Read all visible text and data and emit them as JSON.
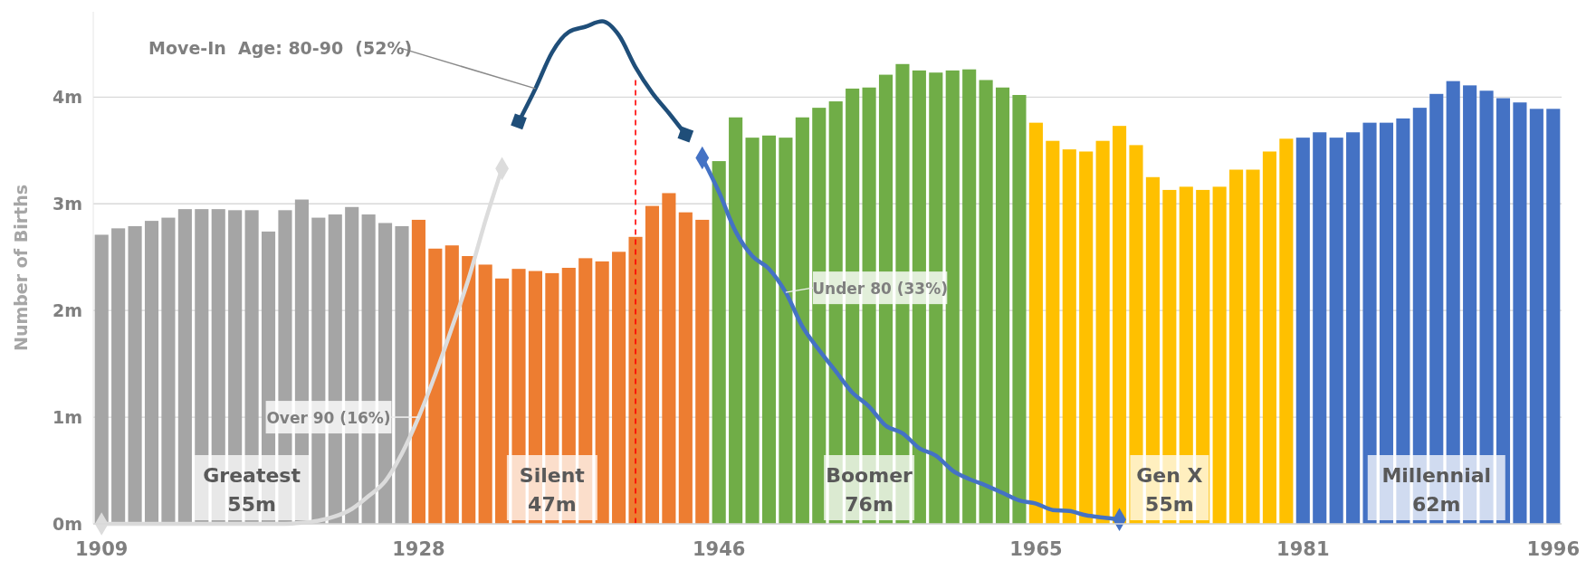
{
  "chart_data": {
    "type": "bar",
    "ylabel": "Number of Births",
    "x": [
      1909,
      1910,
      1911,
      1912,
      1913,
      1914,
      1915,
      1916,
      1917,
      1918,
      1919,
      1920,
      1921,
      1922,
      1923,
      1924,
      1925,
      1926,
      1927,
      1928,
      1929,
      1930,
      1931,
      1932,
      1933,
      1934,
      1935,
      1936,
      1937,
      1938,
      1939,
      1940,
      1941,
      1942,
      1943,
      1944,
      1945,
      1946,
      1947,
      1948,
      1949,
      1950,
      1951,
      1952,
      1953,
      1954,
      1955,
      1956,
      1957,
      1958,
      1959,
      1960,
      1961,
      1962,
      1963,
      1964,
      1965,
      1966,
      1967,
      1968,
      1969,
      1970,
      1971,
      1972,
      1973,
      1974,
      1975,
      1976,
      1977,
      1978,
      1979,
      1980,
      1981,
      1982,
      1983,
      1984,
      1985,
      1986,
      1987,
      1988,
      1989,
      1990,
      1991,
      1992,
      1993,
      1994,
      1995,
      1996
    ],
    "xlim": [
      1908.5,
      1996.5
    ],
    "xticks": [
      1909,
      1928,
      1946,
      1965,
      1981,
      1996
    ],
    "ylim": [
      0,
      4.8
    ],
    "yticks": [
      {
        "value": 0,
        "label": "0m"
      },
      {
        "value": 1,
        "label": "1m"
      },
      {
        "value": 2,
        "label": "2m"
      },
      {
        "value": 3,
        "label": "3m"
      },
      {
        "value": 4,
        "label": "4m"
      }
    ],
    "grid": "y",
    "series": [
      {
        "values": [
          2.71,
          2.77,
          2.79,
          2.84,
          2.87,
          2.95,
          2.95,
          2.95,
          2.94,
          2.94,
          2.74,
          2.94,
          3.04,
          2.87,
          2.9,
          2.97,
          2.9,
          2.82,
          2.79,
          2.85,
          2.58,
          2.61,
          2.51,
          2.43,
          2.3,
          2.39,
          2.37,
          2.35,
          2.4,
          2.49,
          2.46,
          2.55,
          2.69,
          2.98,
          3.1,
          2.92,
          2.85,
          3.4,
          3.81,
          3.62,
          3.64,
          3.62,
          3.81,
          3.9,
          3.96,
          4.08,
          4.09,
          4.21,
          4.31,
          4.25,
          4.23,
          4.25,
          4.26,
          4.16,
          4.09,
          4.02,
          3.76,
          3.59,
          3.51,
          3.49,
          3.59,
          3.73,
          3.55,
          3.25,
          3.13,
          3.16,
          3.13,
          3.16,
          3.32,
          3.32,
          3.49,
          3.61,
          3.62,
          3.67,
          3.62,
          3.67,
          3.76,
          3.76,
          3.8,
          3.9,
          4.03,
          4.15,
          4.11,
          4.06,
          3.99,
          3.95,
          3.89,
          3.89
        ],
        "colors": [
          "#a5a5a5",
          "#a5a5a5",
          "#a5a5a5",
          "#a5a5a5",
          "#a5a5a5",
          "#a5a5a5",
          "#a5a5a5",
          "#a5a5a5",
          "#a5a5a5",
          "#a5a5a5",
          "#a5a5a5",
          "#a5a5a5",
          "#a5a5a5",
          "#a5a5a5",
          "#a5a5a5",
          "#a5a5a5",
          "#a5a5a5",
          "#a5a5a5",
          "#a5a5a5",
          "#ed7d31",
          "#ed7d31",
          "#ed7d31",
          "#ed7d31",
          "#ed7d31",
          "#ed7d31",
          "#ed7d31",
          "#ed7d31",
          "#ed7d31",
          "#ed7d31",
          "#ed7d31",
          "#ed7d31",
          "#ed7d31",
          "#ed7d31",
          "#ed7d31",
          "#ed7d31",
          "#ed7d31",
          "#ed7d31",
          "#70ad47",
          "#70ad47",
          "#70ad47",
          "#70ad47",
          "#70ad47",
          "#70ad47",
          "#70ad47",
          "#70ad47",
          "#70ad47",
          "#70ad47",
          "#70ad47",
          "#70ad47",
          "#70ad47",
          "#70ad47",
          "#70ad47",
          "#70ad47",
          "#70ad47",
          "#70ad47",
          "#70ad47",
          "#ffc000",
          "#ffc000",
          "#ffc000",
          "#ffc000",
          "#ffc000",
          "#ffc000",
          "#ffc000",
          "#ffc000",
          "#ffc000",
          "#ffc000",
          "#ffc000",
          "#ffc000",
          "#ffc000",
          "#ffc000",
          "#ffc000",
          "#ffc000",
          "#4472c4",
          "#4472c4",
          "#4472c4",
          "#4472c4",
          "#4472c4",
          "#4472c4",
          "#4472c4",
          "#4472c4",
          "#4472c4",
          "#4472c4",
          "#4472c4",
          "#4472c4",
          "#4472c4",
          "#4472c4",
          "#4472c4",
          "#4472c4"
        ]
      },
      {
        "type": "line",
        "name": "Over 90 (16%)",
        "color": "#dcdcdc",
        "x": [
          1909,
          1910,
          1911,
          1912,
          1913,
          1914,
          1915,
          1916,
          1917,
          1918,
          1919,
          1920,
          1921,
          1922,
          1923,
          1924,
          1925,
          1926,
          1927,
          1928,
          1929,
          1930,
          1931,
          1932,
          1933
        ],
        "values": [
          0,
          0,
          0,
          0,
          0,
          0,
          0,
          0,
          0,
          0,
          0,
          0,
          0.01,
          0.03,
          0.07,
          0.14,
          0.26,
          0.4,
          0.66,
          1.0,
          1.4,
          1.84,
          2.3,
          2.84,
          3.33
        ]
      },
      {
        "type": "line",
        "name": "Move-In  Age: 80-90  (52%)",
        "color": "#1f4e79",
        "x": [
          1934,
          1935,
          1936,
          1937,
          1938,
          1939,
          1940,
          1941,
          1942,
          1943,
          1944
        ],
        "values": [
          3.77,
          4.08,
          4.42,
          4.61,
          4.66,
          4.71,
          4.58,
          4.28,
          4.04,
          3.85,
          3.65
        ]
      },
      {
        "type": "line",
        "name": "Under 80 (33%)",
        "color": "#4472c4",
        "x": [
          1945,
          1946,
          1947,
          1948,
          1949,
          1950,
          1951,
          1952,
          1953,
          1954,
          1955,
          1956,
          1957,
          1958,
          1959,
          1960,
          1961,
          1962,
          1963,
          1964,
          1965,
          1966,
          1967,
          1968,
          1969,
          1970
        ],
        "values": [
          3.43,
          3.11,
          2.74,
          2.51,
          2.39,
          2.17,
          1.85,
          1.63,
          1.43,
          1.23,
          1.1,
          0.92,
          0.85,
          0.71,
          0.64,
          0.5,
          0.42,
          0.36,
          0.29,
          0.22,
          0.19,
          0.13,
          0.12,
          0.08,
          0.06,
          0.04
        ]
      }
    ],
    "ref_lines": [
      {
        "axis": "x",
        "value": 1941,
        "color": "#ff0000",
        "line_style": "dashed"
      }
    ],
    "annotations": [
      "Greatest\n55m",
      "Silent\n47m",
      "Boomer\n76m",
      "Gen X\n55m",
      "Millennial\n62m"
    ]
  }
}
